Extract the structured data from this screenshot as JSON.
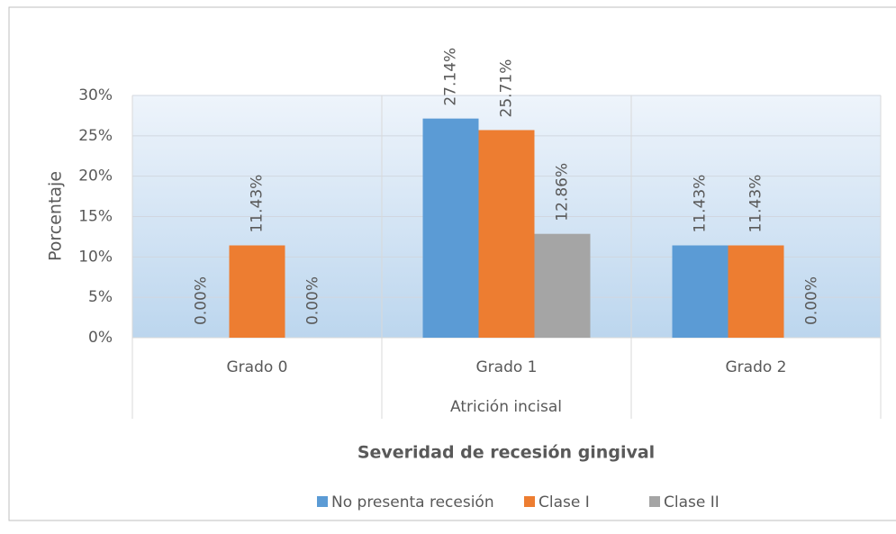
{
  "chart_data": {
    "type": "bar",
    "categories": [
      "Grado 0",
      "Grado 1",
      "Grado 2"
    ],
    "x_label": "Atrición incisal",
    "y_label": "Porcentaje",
    "legend_title": "Severidad de recesión gingival",
    "series": [
      {
        "name": "No presenta recesión",
        "color": "#5b9bd5",
        "values": [
          0,
          27.14,
          11.43
        ],
        "value_labels": [
          "0.00%",
          "27.14%",
          "11.43%"
        ]
      },
      {
        "name": "Clase I",
        "color": "#ed7d31",
        "values": [
          11.43,
          25.71,
          11.43
        ],
        "value_labels": [
          "11.43%",
          "25.71%",
          "11.43%"
        ]
      },
      {
        "name": "Clase II",
        "color": "#a5a5a5",
        "values": [
          0,
          12.86,
          0
        ],
        "value_labels": [
          "0.00%",
          "12.86%",
          "0.00%"
        ]
      }
    ],
    "ylim": [
      0,
      30
    ],
    "yticks": [
      {
        "value": 0,
        "label": "0%"
      },
      {
        "value": 5,
        "label": "5%"
      },
      {
        "value": 10,
        "label": "10%"
      },
      {
        "value": 15,
        "label": "15%"
      },
      {
        "value": 20,
        "label": "20%"
      },
      {
        "value": 25,
        "label": "25%"
      },
      {
        "value": 30,
        "label": "30%"
      }
    ],
    "grid": true,
    "legend": "bottom"
  }
}
